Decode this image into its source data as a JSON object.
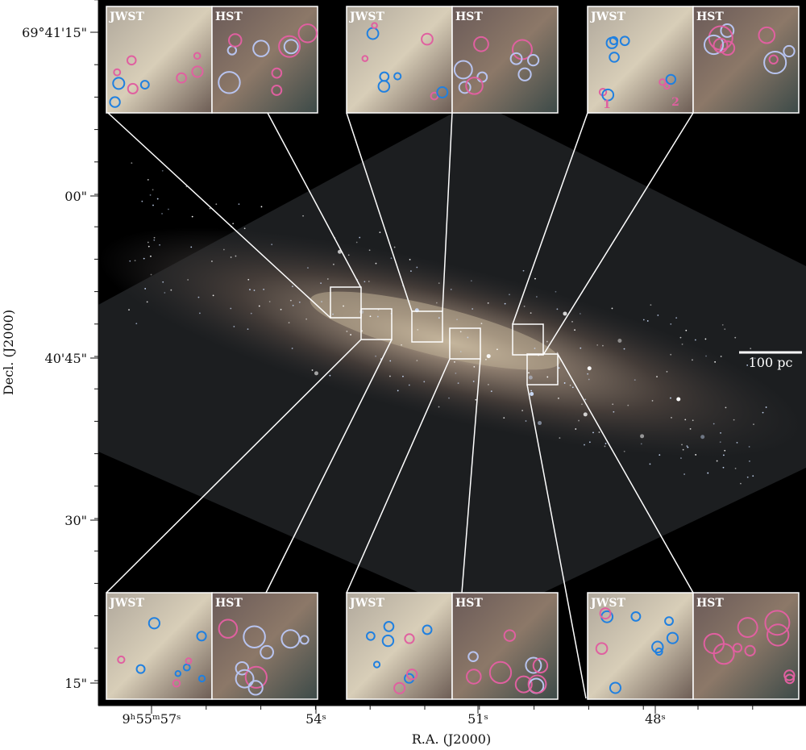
{
  "axes": {
    "x_label": "R.A. (J2000)",
    "y_label": "Decl. (J2000)",
    "x_ticks": [
      "9ʰ55ᵐ57ˢ",
      "54ˢ",
      "51ˢ",
      "48ˢ"
    ],
    "y_ticks": [
      "69°41'15\"",
      "00\"",
      "40'45\"",
      "30\"",
      "15\""
    ]
  },
  "scale_bar": "100 pc",
  "insets": [
    {
      "left": "JWST",
      "right": "HST"
    },
    {
      "left": "JWST",
      "right": "HST"
    },
    {
      "left": "JWST",
      "right": "HST"
    },
    {
      "left": "JWST",
      "right": "HST"
    },
    {
      "left": "JWST",
      "right": "HST"
    },
    {
      "left": "JWST",
      "right": "HST"
    }
  ],
  "markers": [
    "1",
    "2"
  ]
}
